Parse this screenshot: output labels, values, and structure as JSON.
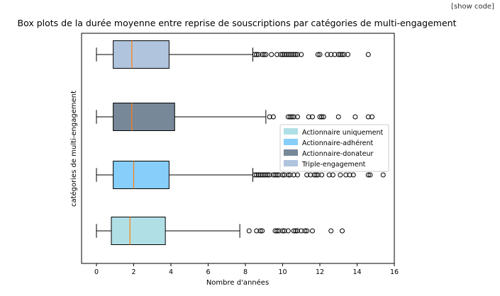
{
  "toolbar": {
    "show_code_label": "[show code]"
  },
  "chart_data": {
    "type": "boxplot",
    "orientation": "horizontal",
    "title": "Box plots de la durée moyenne entre reprise de souscriptions par catégories de multi-engagement",
    "xlabel": "Nombre d'années",
    "ylabel": "catégories de multi-engagement",
    "xlim": [
      -0.8,
      16.0
    ],
    "xticks": [
      0,
      2,
      4,
      6,
      8,
      10,
      12,
      14,
      16
    ],
    "grid": false,
    "legend_position": "center-right",
    "series": [
      {
        "name": "Actionnaire uniquement",
        "color": "#b0e0e6",
        "whisker_low": 0.0,
        "q1": 0.8,
        "median": 1.8,
        "q3": 3.7,
        "whisker_high": 7.7,
        "outliers": [
          8.2,
          8.6,
          8.8,
          8.9,
          9.6,
          9.7,
          9.8,
          10.0,
          10.1,
          10.3,
          10.6,
          10.7,
          10.8,
          11.0,
          11.2,
          11.3,
          11.6,
          12.6,
          13.2
        ]
      },
      {
        "name": "Actionnaire-adhérent",
        "color": "#87cefa",
        "whisker_low": 0.0,
        "q1": 0.9,
        "median": 2.0,
        "q3": 3.9,
        "whisker_high": 8.4,
        "outliers": [
          8.5,
          8.6,
          8.7,
          8.8,
          8.9,
          9.0,
          9.1,
          9.2,
          9.3,
          9.5,
          9.6,
          9.7,
          9.8,
          10.0,
          10.1,
          10.3,
          10.4,
          10.6,
          10.8,
          11.3,
          11.5,
          11.7,
          11.8,
          11.9,
          12.1,
          12.5,
          12.7,
          13.1,
          13.4,
          13.6,
          13.8,
          14.6,
          14.7,
          15.4
        ]
      },
      {
        "name": "Actionnaire-donateur",
        "color": "#778899",
        "whisker_low": 0.0,
        "q1": 0.9,
        "median": 1.9,
        "q3": 4.2,
        "whisker_high": 9.1,
        "outliers": [
          9.3,
          9.5,
          10.3,
          10.4,
          10.5,
          10.6,
          10.8,
          11.4,
          11.6,
          12.0,
          12.1,
          12.2,
          13.0,
          13.9,
          14.6,
          14.8
        ]
      },
      {
        "name": "Triple-engagement",
        "color": "#b0c4de",
        "whisker_low": 0.0,
        "q1": 0.9,
        "median": 1.9,
        "q3": 3.9,
        "whisker_high": 8.4,
        "outliers": [
          8.5,
          8.6,
          8.7,
          8.9,
          9.0,
          9.1,
          9.4,
          9.7,
          9.9,
          10.0,
          10.1,
          10.2,
          10.3,
          10.4,
          10.5,
          10.6,
          10.7,
          10.8,
          11.0,
          11.9,
          12.0,
          12.4,
          12.6,
          12.8,
          13.0,
          13.1,
          13.2,
          13.3,
          13.5,
          14.6
        ]
      }
    ],
    "median_color": "#ff7f0e"
  }
}
